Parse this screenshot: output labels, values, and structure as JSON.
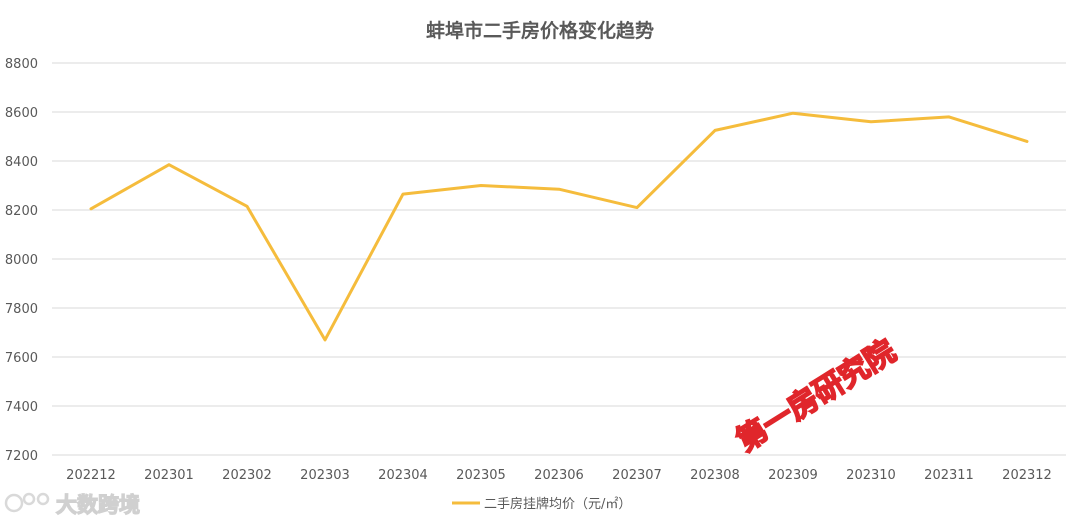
{
  "chart_data": {
    "type": "line",
    "title": "蚌埠市二手房价格变化趋势",
    "categories": [
      "202212",
      "202301",
      "202302",
      "202303",
      "202304",
      "202305",
      "202306",
      "202307",
      "202308",
      "202309",
      "202310",
      "202311",
      "202312"
    ],
    "series": [
      {
        "name": "二手房挂牌均价（元/㎡）",
        "values": [
          8205,
          8385,
          8215,
          7670,
          8265,
          8300,
          8285,
          8210,
          8525,
          8595,
          8560,
          8580,
          8480
        ],
        "color": "#F5BC3C"
      }
    ],
    "xlabel": "",
    "ylabel": "",
    "ylim": [
      7200,
      8800
    ],
    "yticks": [
      7200,
      7400,
      7600,
      7800,
      8000,
      8200,
      8400,
      8600,
      8800
    ],
    "grid": true,
    "legend": "bottom-center"
  },
  "watermark": {
    "text": "第一房研究院",
    "color": "#E0262B"
  },
  "brand_logo": {
    "text": "大数跨境",
    "color": "#D9D9D9"
  }
}
